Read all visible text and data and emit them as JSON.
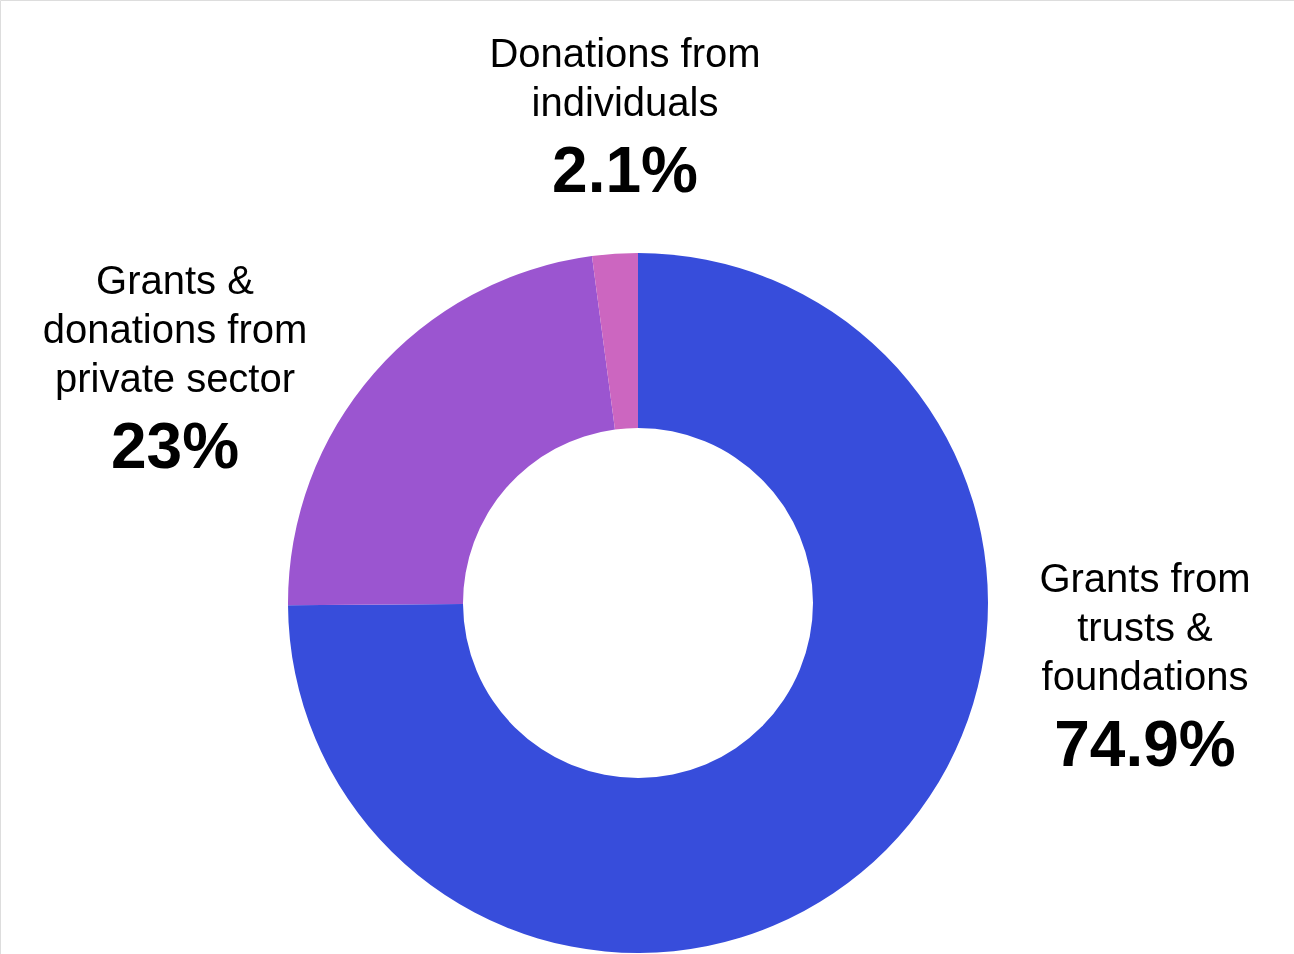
{
  "chart_data": {
    "type": "donut",
    "categories": [
      "Grants from trusts & foundations",
      "Grants & donations from private sector",
      "Donations from individuals"
    ],
    "values": [
      74.9,
      23,
      2.1
    ],
    "colors": [
      "#374ddb",
      "#9b55d0",
      "#cc66c0"
    ],
    "value_labels": [
      "74.9%",
      "23%",
      "2.1%"
    ]
  }
}
